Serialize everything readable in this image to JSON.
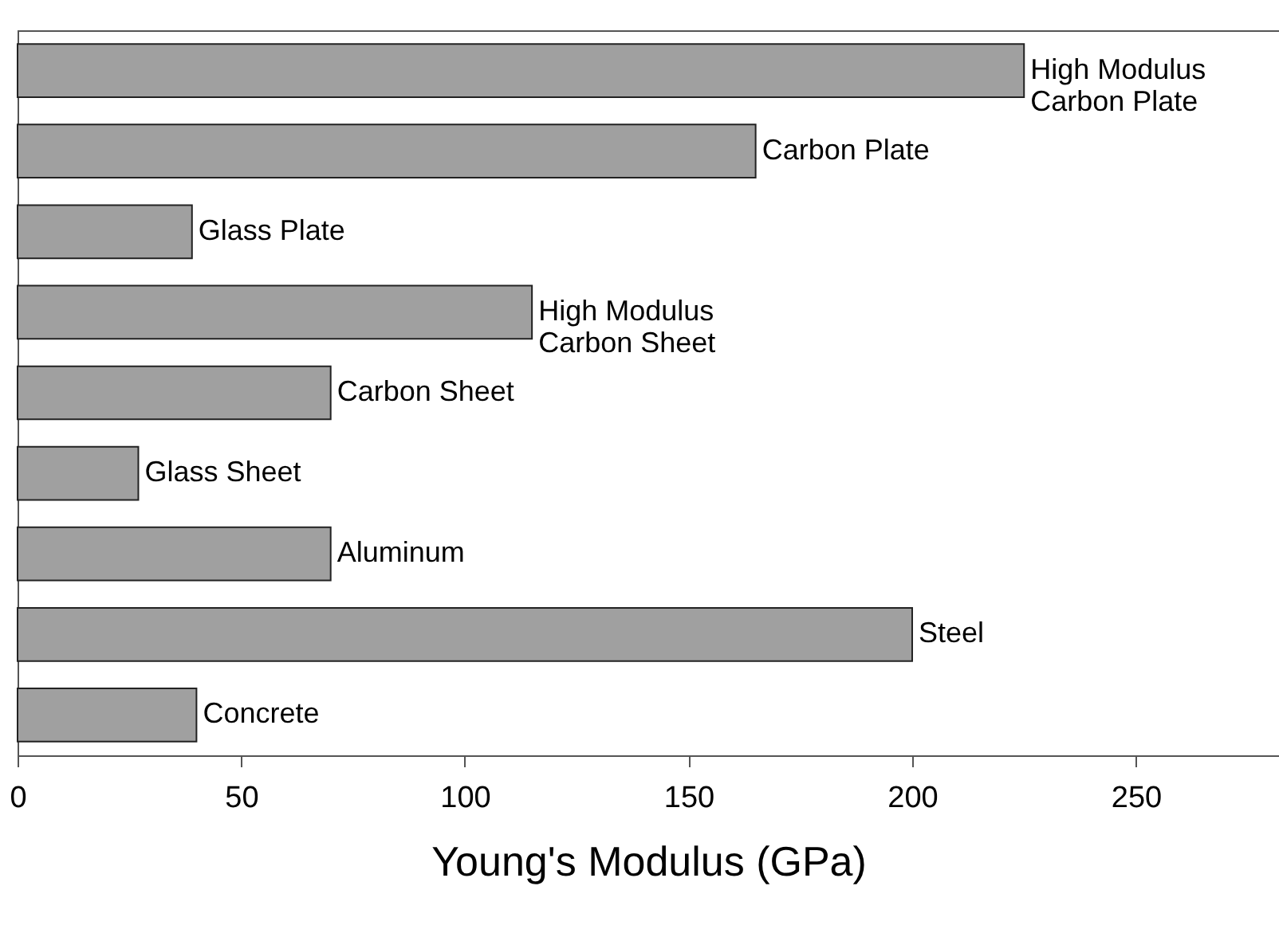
{
  "chart_data": {
    "type": "bar",
    "orientation": "horizontal",
    "xlabel": "Young's Modulus (GPa)",
    "categories": [
      "High Modulus\nCarbon Plate",
      "Carbon Plate",
      "Glass Plate",
      "High Modulus\nCarbon Sheet",
      "Carbon Sheet",
      "Glass Sheet",
      "Aluminum",
      "Steel",
      "Concrete"
    ],
    "values": [
      225,
      165,
      39,
      115,
      70,
      27,
      70,
      200,
      40
    ],
    "color": "#a0a0a0",
    "xlim": [
      0,
      282
    ],
    "xticks": [
      0,
      50,
      100,
      150,
      200,
      250
    ],
    "grid": false,
    "tick_labels": "x"
  }
}
